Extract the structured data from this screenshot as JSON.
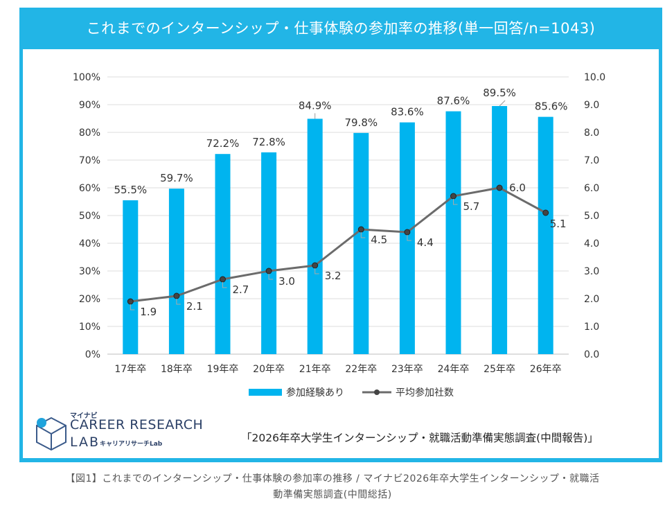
{
  "title": "これまでのインターンシップ・仕事体験の参加率の推移(単一回答/n=1043)",
  "colors": {
    "frame": "#22b5e6",
    "bar": "#00b4ef",
    "line": "#6b6b6b",
    "marker": "#444444"
  },
  "chart_data": {
    "type": "bar",
    "categories": [
      "17年卒",
      "18年卒",
      "19年卒",
      "20年卒",
      "21年卒",
      "22年卒",
      "23年卒",
      "24年卒",
      "25年卒",
      "26年卒"
    ],
    "series": [
      {
        "name": "参加経験あり",
        "type": "bar",
        "axis": "left",
        "values": [
          55.5,
          59.7,
          72.2,
          72.8,
          84.9,
          79.8,
          83.6,
          87.6,
          89.5,
          85.6
        ],
        "labels": [
          "55.5%",
          "59.7%",
          "72.2%",
          "72.8%",
          "84.9%",
          "79.8%",
          "83.6%",
          "87.6%",
          "89.5%",
          "85.6%"
        ]
      },
      {
        "name": "平均参加社数",
        "type": "line",
        "axis": "right",
        "values": [
          1.9,
          2.1,
          2.7,
          3.0,
          3.2,
          4.5,
          4.4,
          5.7,
          6.0,
          5.1
        ],
        "labels": [
          "1.9",
          "2.1",
          "2.7",
          "3.0",
          "3.2",
          "4.5",
          "4.4",
          "5.7",
          "6.0",
          "5.1"
        ]
      }
    ],
    "y_left": {
      "min": 0,
      "max": 100,
      "step": 10,
      "ticks": [
        "0%",
        "10%",
        "20%",
        "30%",
        "40%",
        "50%",
        "60%",
        "70%",
        "80%",
        "90%",
        "100%"
      ]
    },
    "y_right": {
      "min": 0,
      "max": 10,
      "step": 1,
      "ticks": [
        "0.0",
        "1.0",
        "2.0",
        "3.0",
        "4.0",
        "5.0",
        "6.0",
        "7.0",
        "8.0",
        "9.0",
        "10.0"
      ]
    },
    "grid": true,
    "legend_position": "bottom"
  },
  "logo": {
    "kana": "マイナビ",
    "line1": "CAREER RESEARCH",
    "line2": "LAB",
    "line2_sub": "キャリアリサーチLab"
  },
  "source": "「2026年卒大学生インターンシップ・就職活動準備実態調査(中間報告)」",
  "caption": {
    "line1": "【図1】これまでのインターンシップ・仕事体験の参加率の推移 / マイナビ2026年卒大学生インターンシップ・就職活",
    "line2": "動準備実態調査(中間総括)"
  }
}
